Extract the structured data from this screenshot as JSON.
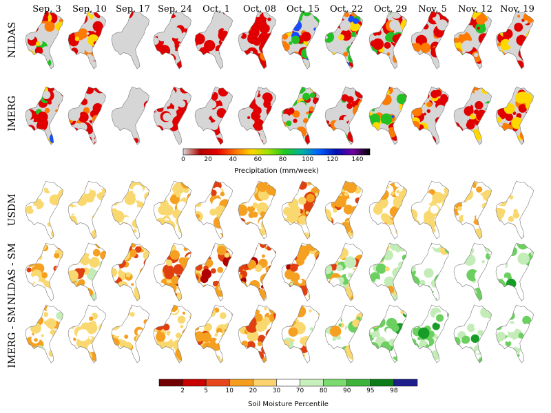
{
  "dates": [
    "Sep, 3",
    "Sep, 10",
    "Sep, 17",
    "Sep, 24",
    "Oct, 1",
    "Oct, 08",
    "Oct, 15",
    "Oct, 22",
    "Oct, 29",
    "Nov, 5",
    "Nov, 12",
    "Nov, 19"
  ],
  "rows": [
    "NLDAS",
    "IMERG",
    "USDM",
    "NLDAS - SM",
    "IMERG - SM"
  ],
  "precip_colorbar": {
    "title": "Precipitation (mm/week)",
    "ticks": [
      "0",
      "20",
      "40",
      "60",
      "80",
      "100",
      "120",
      "140"
    ],
    "range": [
      0,
      150
    ],
    "colors": [
      "#d9d9d9",
      "#b00000",
      "#e60000",
      "#ff6a00",
      "#ffd400",
      "#9fe000",
      "#1fc81f",
      "#00b0a0",
      "#0060ff",
      "#0010b0",
      "#7000a0",
      "#000000"
    ]
  },
  "sm_colorbar": {
    "title": "Soil Moisture Percentile",
    "ticks": [
      "2",
      "5",
      "10",
      "20",
      "30",
      "70",
      "80",
      "90",
      "95",
      "98"
    ],
    "colors": [
      "#730000",
      "#c80000",
      "#e8461c",
      "#f59e1e",
      "#fad26e",
      "#ffffff",
      "#c8f0bc",
      "#7adc6e",
      "#3cb43c",
      "#0a7d18",
      "#1e1e8c"
    ]
  }
}
